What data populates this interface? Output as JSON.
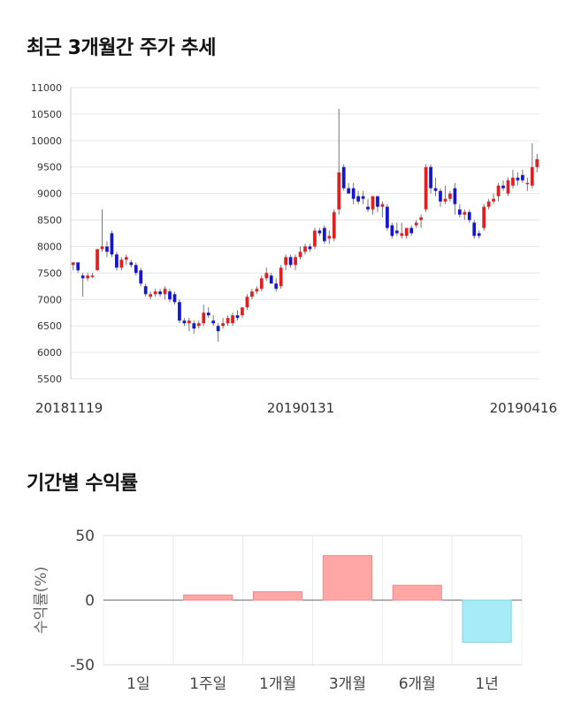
{
  "section1": {
    "title": "최근 3개월간 주가 추세"
  },
  "section2": {
    "title": "기간별 수익률"
  },
  "colors": {
    "up": "#e02020",
    "down": "#1414d2",
    "positive_bar": "#ffa6a6",
    "negative_bar": "#a6ebf5"
  },
  "chart_data": [
    {
      "type": "candlestick",
      "title": "",
      "ylim": [
        5500,
        11000
      ],
      "y_ticks": [
        5500,
        6000,
        6500,
        7000,
        7500,
        8000,
        8500,
        9000,
        9500,
        10000,
        10500,
        11000
      ],
      "x_tick_labels": [
        "20181119",
        "20190131",
        "20190416"
      ],
      "grid": true,
      "candles": [
        {
          "o": 7650,
          "h": 7700,
          "l": 7550,
          "c": 7700
        },
        {
          "o": 7700,
          "h": 7700,
          "l": 7500,
          "c": 7550
        },
        {
          "o": 7450,
          "h": 7500,
          "l": 7050,
          "c": 7400
        },
        {
          "o": 7400,
          "h": 7500,
          "l": 7350,
          "c": 7450
        },
        {
          "o": 7450,
          "h": 7500,
          "l": 7400,
          "c": 7450
        },
        {
          "o": 7550,
          "h": 7950,
          "l": 7550,
          "c": 7950
        },
        {
          "o": 7950,
          "h": 8700,
          "l": 7900,
          "c": 8000
        },
        {
          "o": 8000,
          "h": 8100,
          "l": 7800,
          "c": 7900
        },
        {
          "o": 8250,
          "h": 8300,
          "l": 7800,
          "c": 7850
        },
        {
          "o": 7850,
          "h": 7900,
          "l": 7550,
          "c": 7600
        },
        {
          "o": 7600,
          "h": 7800,
          "l": 7550,
          "c": 7750
        },
        {
          "o": 7750,
          "h": 7850,
          "l": 7650,
          "c": 7800
        },
        {
          "o": 7700,
          "h": 7750,
          "l": 7600,
          "c": 7650
        },
        {
          "o": 7650,
          "h": 7700,
          "l": 7450,
          "c": 7500
        },
        {
          "o": 7550,
          "h": 7600,
          "l": 7250,
          "c": 7300
        },
        {
          "o": 7250,
          "h": 7300,
          "l": 7050,
          "c": 7100
        },
        {
          "o": 7050,
          "h": 7150,
          "l": 7000,
          "c": 7100
        },
        {
          "o": 7100,
          "h": 7200,
          "l": 7050,
          "c": 7150
        },
        {
          "o": 7150,
          "h": 7200,
          "l": 7050,
          "c": 7100
        },
        {
          "o": 7100,
          "h": 7250,
          "l": 7000,
          "c": 7200
        },
        {
          "o": 7150,
          "h": 7200,
          "l": 6950,
          "c": 7000
        },
        {
          "o": 7100,
          "h": 7150,
          "l": 6900,
          "c": 6950
        },
        {
          "o": 6950,
          "h": 7000,
          "l": 6550,
          "c": 6600
        },
        {
          "o": 6600,
          "h": 6650,
          "l": 6500,
          "c": 6550
        },
        {
          "o": 6550,
          "h": 6650,
          "l": 6400,
          "c": 6600
        },
        {
          "o": 6550,
          "h": 6600,
          "l": 6350,
          "c": 6450
        },
        {
          "o": 6500,
          "h": 6600,
          "l": 6450,
          "c": 6550
        },
        {
          "o": 6550,
          "h": 6900,
          "l": 6500,
          "c": 6750
        },
        {
          "o": 6750,
          "h": 6850,
          "l": 6650,
          "c": 6700
        },
        {
          "o": 6600,
          "h": 6700,
          "l": 6500,
          "c": 6550
        },
        {
          "o": 6500,
          "h": 6550,
          "l": 6200,
          "c": 6400
        },
        {
          "o": 6500,
          "h": 6650,
          "l": 6450,
          "c": 6550
        },
        {
          "o": 6550,
          "h": 6700,
          "l": 6500,
          "c": 6650
        },
        {
          "o": 6550,
          "h": 6750,
          "l": 6500,
          "c": 6700
        },
        {
          "o": 6700,
          "h": 6800,
          "l": 6600,
          "c": 6650
        },
        {
          "o": 6700,
          "h": 6850,
          "l": 6650,
          "c": 6850
        },
        {
          "o": 6850,
          "h": 7100,
          "l": 6800,
          "c": 7050
        },
        {
          "o": 7050,
          "h": 7200,
          "l": 7000,
          "c": 7150
        },
        {
          "o": 7150,
          "h": 7250,
          "l": 7100,
          "c": 7200
        },
        {
          "o": 7200,
          "h": 7450,
          "l": 7150,
          "c": 7400
        },
        {
          "o": 7400,
          "h": 7600,
          "l": 7350,
          "c": 7500
        },
        {
          "o": 7450,
          "h": 7500,
          "l": 7300,
          "c": 7300
        },
        {
          "o": 7300,
          "h": 7400,
          "l": 7150,
          "c": 7200
        },
        {
          "o": 7250,
          "h": 7650,
          "l": 7200,
          "c": 7600
        },
        {
          "o": 7650,
          "h": 7850,
          "l": 7550,
          "c": 7800
        },
        {
          "o": 7800,
          "h": 7850,
          "l": 7600,
          "c": 7650
        },
        {
          "o": 7650,
          "h": 7850,
          "l": 7550,
          "c": 7800
        },
        {
          "o": 7800,
          "h": 8000,
          "l": 7750,
          "c": 7900
        },
        {
          "o": 7900,
          "h": 8050,
          "l": 7850,
          "c": 8000
        },
        {
          "o": 8000,
          "h": 8050,
          "l": 7900,
          "c": 7950
        },
        {
          "o": 8000,
          "h": 8350,
          "l": 7950,
          "c": 8300
        },
        {
          "o": 8300,
          "h": 8350,
          "l": 8200,
          "c": 8250
        },
        {
          "o": 8350,
          "h": 8400,
          "l": 8050,
          "c": 8100
        },
        {
          "o": 8150,
          "h": 8300,
          "l": 8050,
          "c": 8200
        },
        {
          "o": 8150,
          "h": 8700,
          "l": 8100,
          "c": 8650
        },
        {
          "o": 8700,
          "h": 10600,
          "l": 8600,
          "c": 9400
        },
        {
          "o": 9500,
          "h": 9550,
          "l": 9050,
          "c": 9100
        },
        {
          "o": 9100,
          "h": 9200,
          "l": 9000,
          "c": 9000
        },
        {
          "o": 9100,
          "h": 9200,
          "l": 8800,
          "c": 8900
        },
        {
          "o": 8950,
          "h": 9050,
          "l": 8800,
          "c": 8850
        },
        {
          "o": 8950,
          "h": 9050,
          "l": 8800,
          "c": 8900
        },
        {
          "o": 8750,
          "h": 8900,
          "l": 8650,
          "c": 8700
        },
        {
          "o": 8700,
          "h": 8950,
          "l": 8600,
          "c": 8950
        },
        {
          "o": 8950,
          "h": 8950,
          "l": 8650,
          "c": 8750
        },
        {
          "o": 8750,
          "h": 8850,
          "l": 8550,
          "c": 8800
        },
        {
          "o": 8750,
          "h": 8800,
          "l": 8300,
          "c": 8350
        },
        {
          "o": 8400,
          "h": 8450,
          "l": 8150,
          "c": 8200
        },
        {
          "o": 8300,
          "h": 8450,
          "l": 8200,
          "c": 8250
        },
        {
          "o": 8200,
          "h": 8450,
          "l": 8150,
          "c": 8250
        },
        {
          "o": 8200,
          "h": 8350,
          "l": 8150,
          "c": 8350
        },
        {
          "o": 8350,
          "h": 8400,
          "l": 8200,
          "c": 8250
        },
        {
          "o": 8400,
          "h": 8500,
          "l": 8350,
          "c": 8450
        },
        {
          "o": 8500,
          "h": 8600,
          "l": 8350,
          "c": 8550
        },
        {
          "o": 8700,
          "h": 9550,
          "l": 8650,
          "c": 9500
        },
        {
          "o": 9500,
          "h": 9550,
          "l": 9000,
          "c": 9100
        },
        {
          "o": 9100,
          "h": 9300,
          "l": 8950,
          "c": 9050
        },
        {
          "o": 9050,
          "h": 9100,
          "l": 8750,
          "c": 8850
        },
        {
          "o": 8850,
          "h": 9150,
          "l": 8800,
          "c": 8900
        },
        {
          "o": 8900,
          "h": 9050,
          "l": 8850,
          "c": 9000
        },
        {
          "o": 9100,
          "h": 9200,
          "l": 8600,
          "c": 8800
        },
        {
          "o": 8700,
          "h": 8800,
          "l": 8550,
          "c": 8600
        },
        {
          "o": 8600,
          "h": 8700,
          "l": 8500,
          "c": 8650
        },
        {
          "o": 8650,
          "h": 8700,
          "l": 8450,
          "c": 8500
        },
        {
          "o": 8450,
          "h": 8500,
          "l": 8150,
          "c": 8200
        },
        {
          "o": 8250,
          "h": 8300,
          "l": 8150,
          "c": 8200
        },
        {
          "o": 8350,
          "h": 8800,
          "l": 8300,
          "c": 8750
        },
        {
          "o": 8750,
          "h": 8900,
          "l": 8700,
          "c": 8850
        },
        {
          "o": 8850,
          "h": 9000,
          "l": 8800,
          "c": 8900
        },
        {
          "o": 8950,
          "h": 9200,
          "l": 8850,
          "c": 9150
        },
        {
          "o": 9150,
          "h": 9250,
          "l": 9050,
          "c": 9100
        },
        {
          "o": 9000,
          "h": 9300,
          "l": 8950,
          "c": 9250
        },
        {
          "o": 9150,
          "h": 9450,
          "l": 9100,
          "c": 9300
        },
        {
          "o": 9300,
          "h": 9400,
          "l": 9150,
          "c": 9250
        },
        {
          "o": 9350,
          "h": 9450,
          "l": 9200,
          "c": 9250
        },
        {
          "o": 9200,
          "h": 9300,
          "l": 9050,
          "c": 9200
        },
        {
          "o": 9150,
          "h": 9950,
          "l": 9100,
          "c": 9500
        },
        {
          "o": 9500,
          "h": 9750,
          "l": 9400,
          "c": 9650
        }
      ]
    },
    {
      "type": "bar",
      "title": "",
      "ylabel": "수익률(%)",
      "ylim": [
        -50,
        50
      ],
      "y_ticks": [
        50,
        0,
        -50
      ],
      "categories": [
        "1일",
        "1주일",
        "1개월",
        "3개월",
        "6개월",
        "1년"
      ],
      "values": [
        0,
        4,
        6.5,
        34.5,
        11.5,
        -32.5
      ],
      "grid": true
    }
  ]
}
